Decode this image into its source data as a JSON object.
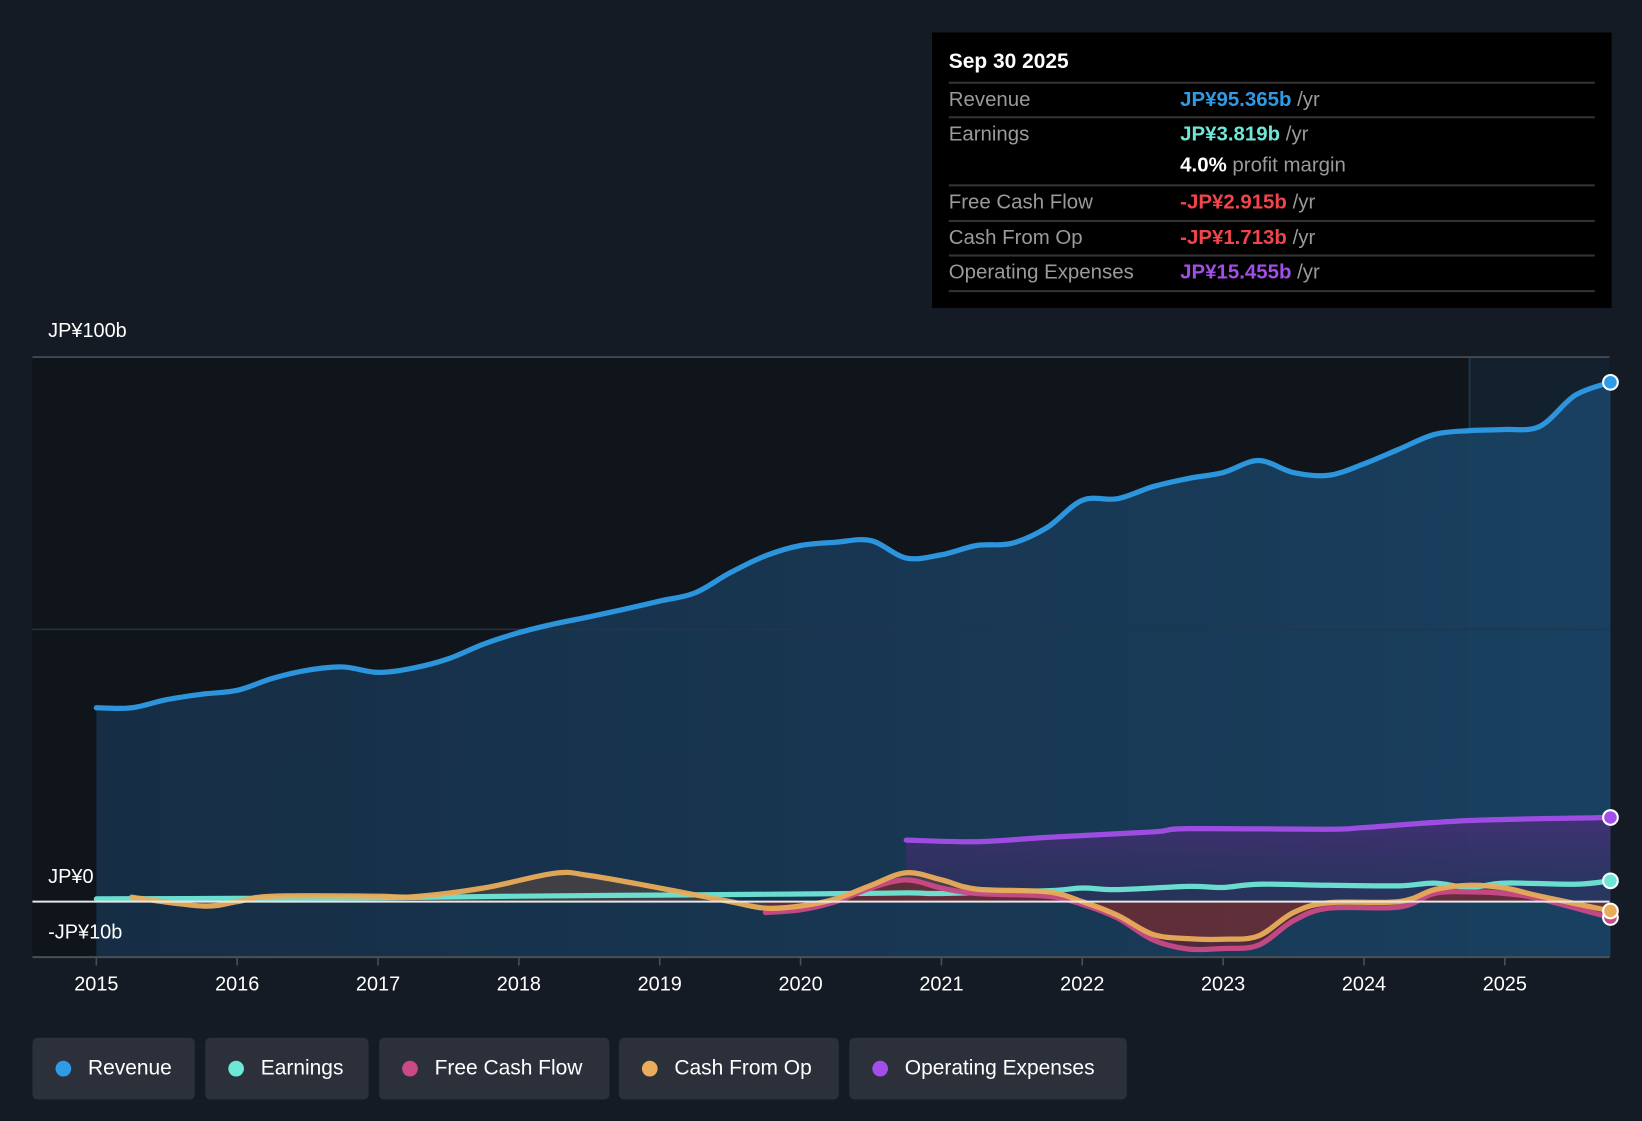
{
  "tooltip": {
    "date": "Sep 30 2025",
    "rows": [
      {
        "label": "Revenue",
        "value": "JP¥95.365b",
        "unit": " /yr",
        "color": "#2d9be6"
      },
      {
        "label": "Earnings",
        "value": "JP¥3.819b",
        "unit": " /yr",
        "color": "#6ee7d6"
      },
      {
        "label": "",
        "value": "4.0%",
        "unit": " profit margin",
        "color": "#ffffff"
      },
      {
        "label": "Free Cash Flow",
        "value": "-JP¥2.915b",
        "unit": " /yr",
        "color": "#f0454a"
      },
      {
        "label": "Cash From Op",
        "value": "-JP¥1.713b",
        "unit": " /yr",
        "color": "#f0454a"
      },
      {
        "label": "Operating Expenses",
        "value": "JP¥15.455b",
        "unit": " /yr",
        "color": "#a34ee8"
      }
    ]
  },
  "legend": [
    {
      "label": "Revenue",
      "color": "#2d9be6"
    },
    {
      "label": "Earnings",
      "color": "#6ee7d6"
    },
    {
      "label": "Free Cash Flow",
      "color": "#c94a86"
    },
    {
      "label": "Cash From Op",
      "color": "#e9ac5a"
    },
    {
      "label": "Operating Expenses",
      "color": "#a34ee8"
    }
  ],
  "chart_data": {
    "type": "line",
    "title": "",
    "xlabel": "",
    "ylabel": "",
    "ylim": [
      -10.2,
      100
    ],
    "xlim": [
      2014.55,
      2025.75
    ],
    "y_tick_labels": [
      {
        "value": 100,
        "label": "JP¥100b"
      },
      {
        "value": 0,
        "label": "JP¥0"
      },
      {
        "value": -10,
        "label": "-JP¥10b"
      }
    ],
    "x_ticks": [
      2015,
      2016,
      2017,
      2018,
      2019,
      2020,
      2021,
      2022,
      2023,
      2024,
      2025
    ],
    "x_tick_labels": [
      "2015",
      "2016",
      "2017",
      "2018",
      "2019",
      "2020",
      "2021",
      "2022",
      "2023",
      "2024",
      "2025"
    ],
    "highlight_from": 2024.75,
    "units": "JP¥ billions",
    "series": [
      {
        "name": "Revenue",
        "color": "#2d9be6",
        "x": [
          2015,
          2015.25,
          2015.5,
          2015.75,
          2016,
          2016.25,
          2016.5,
          2016.75,
          2017,
          2017.25,
          2017.5,
          2017.75,
          2018,
          2018.25,
          2018.5,
          2018.75,
          2019,
          2019.25,
          2019.5,
          2019.75,
          2020,
          2020.25,
          2020.5,
          2020.75,
          2021,
          2021.25,
          2021.5,
          2021.75,
          2022,
          2022.25,
          2022.5,
          2022.75,
          2023,
          2023.25,
          2023.5,
          2023.75,
          2024,
          2024.25,
          2024.5,
          2024.75,
          2025,
          2025.25,
          2025.5,
          2025.75
        ],
        "y": [
          35.6,
          35.6,
          37.1,
          38.1,
          38.8,
          41,
          42.5,
          43.1,
          42.1,
          42.9,
          44.6,
          47.3,
          49.4,
          51,
          52.3,
          53.7,
          55.2,
          56.7,
          60.4,
          63.5,
          65.4,
          66,
          66.3,
          63.1,
          63.7,
          65.4,
          65.8,
          68.7,
          73.7,
          74,
          76.2,
          77.7,
          78.8,
          81,
          78.8,
          78.3,
          80.4,
          83.1,
          85.8,
          86.5,
          86.7,
          87.3,
          93,
          95.365
        ]
      },
      {
        "name": "Earnings",
        "color": "#6ee7d6",
        "x": [
          2015,
          2016,
          2017,
          2018,
          2019,
          2020,
          2020.75,
          2021,
          2021.75,
          2022,
          2022.25,
          2022.75,
          2023,
          2023.25,
          2023.75,
          2024.25,
          2024.5,
          2024.75,
          2025,
          2025.5,
          2025.75
        ],
        "y": [
          0.5,
          0.6,
          0.7,
          1.0,
          1.2,
          1.4,
          1.6,
          1.5,
          2.0,
          2.5,
          2.2,
          2.8,
          2.6,
          3.2,
          3.0,
          2.9,
          3.4,
          2.6,
          3.4,
          3.2,
          3.819
        ]
      },
      {
        "name": "Free Cash Flow",
        "color": "#c94a86",
        "x": [
          2019.75,
          2020,
          2020.25,
          2020.5,
          2020.75,
          2021,
          2021.25,
          2021.75,
          2022,
          2022.25,
          2022.5,
          2022.75,
          2023,
          2023.25,
          2023.5,
          2023.75,
          2024.25,
          2024.5,
          2024.75,
          2025,
          2025.25,
          2025.75
        ],
        "y": [
          -2.0,
          -1.5,
          0,
          2.5,
          4,
          2.5,
          1.5,
          1.0,
          -0.5,
          -3,
          -7,
          -8.7,
          -8.6,
          -8,
          -3.5,
          -1.2,
          -1.0,
          1.5,
          1.8,
          1.5,
          0.5,
          -2.915
        ]
      },
      {
        "name": "Cash From Op",
        "color": "#e9ac5a",
        "x": [
          2015.25,
          2015.75,
          2016,
          2016.25,
          2017,
          2017.25,
          2017.75,
          2018.25,
          2018.5,
          2019,
          2019.5,
          2019.75,
          2020,
          2020.25,
          2020.5,
          2020.75,
          2021,
          2021.25,
          2021.75,
          2022,
          2022.25,
          2022.5,
          2022.75,
          2023,
          2023.25,
          2023.5,
          2023.75,
          2024.25,
          2024.5,
          2024.75,
          2025,
          2025.25,
          2025.75
        ],
        "y": [
          0.8,
          -0.8,
          0,
          1.0,
          1.0,
          0.9,
          2.5,
          5.2,
          4.8,
          2.5,
          0,
          -1.2,
          -0.8,
          0.5,
          3,
          5.3,
          4.0,
          2.3,
          1.8,
          0,
          -2.5,
          -6,
          -6.8,
          -6.9,
          -6.3,
          -2,
          -0.2,
          0,
          2.2,
          3,
          2.5,
          1.0,
          -1.713
        ]
      },
      {
        "name": "Operating Expenses",
        "color": "#a34ee8",
        "x": [
          2020.75,
          2021.25,
          2021.75,
          2022.5,
          2022.75,
          2023.75,
          2024,
          2024.75,
          2025.75
        ],
        "y": [
          11.3,
          11.0,
          11.8,
          12.8,
          13.4,
          13.3,
          13.6,
          14.9,
          15.455
        ]
      }
    ]
  }
}
